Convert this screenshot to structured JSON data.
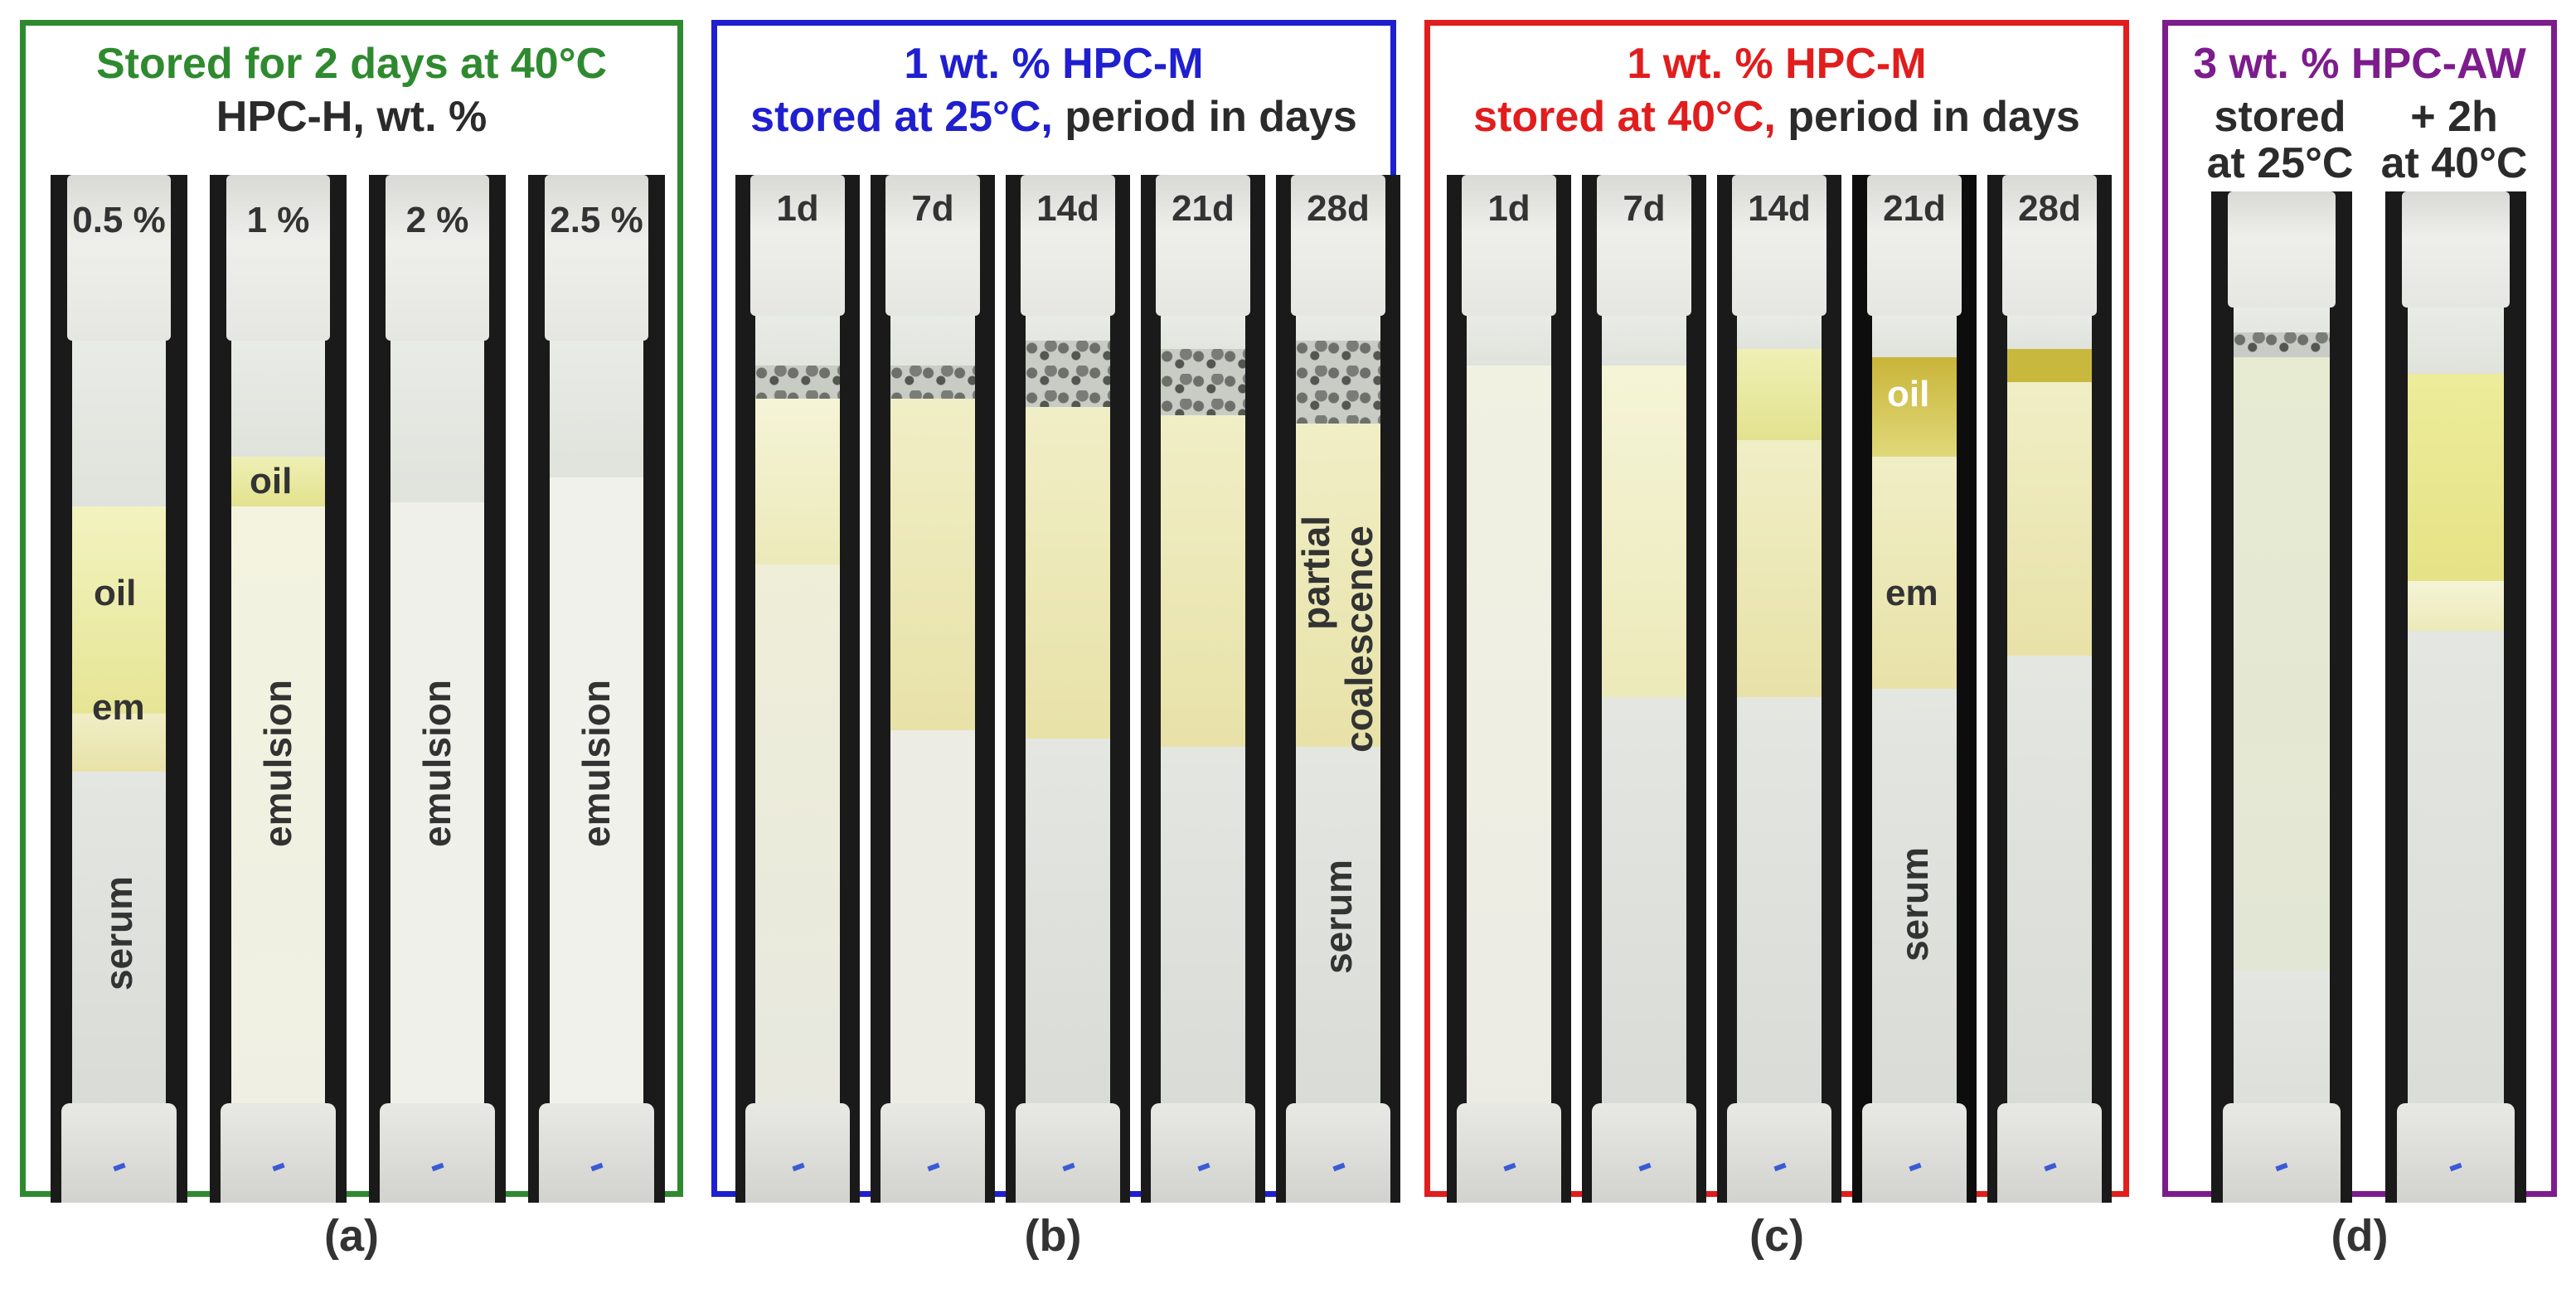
{
  "panels": {
    "a": {
      "title_line1": "Stored for 2 days at 40°C",
      "title_line2": "HPC-H, wt. %",
      "tubes": [
        "0.5 %",
        "1 %",
        "2 %",
        "2.5 %"
      ],
      "layer_labels": {
        "oil_0": "oil",
        "em_0": "em",
        "serum_0": "serum",
        "oil_1": "oil",
        "emulsion_1": "emulsion",
        "emulsion_2": "emulsion",
        "emulsion_3": "emulsion"
      },
      "caption": "(a)",
      "border_color": "#2f8a2f"
    },
    "b": {
      "title_line1": "1 wt. % HPC-M",
      "title_line2_colored": "stored at 25°C,",
      "title_line2_rest": " period in days",
      "tubes": [
        "1d",
        "7d",
        "14d",
        "21d",
        "28d"
      ],
      "layer_labels": {
        "partial": "partial",
        "coalescence": "coalescence",
        "serum": "serum"
      },
      "caption": "(b)",
      "border_color": "#1f1fcf"
    },
    "c": {
      "title_line1": "1 wt. % HPC-M",
      "title_line2_colored": "stored at 40°C,",
      "title_line2_rest": " period in days",
      "tubes": [
        "1d",
        "7d",
        "14d",
        "21d",
        "28d"
      ],
      "layer_labels": {
        "oil": "oil",
        "em": "em",
        "serum": "serum"
      },
      "caption": "(c)",
      "border_color": "#e11d1d"
    },
    "d": {
      "title_line1": "3 wt. % HPC-AW",
      "col1_line1": "stored",
      "col1_line2": "at 25°C",
      "col2_line1": "+ 2h",
      "col2_line2": "at 40°C",
      "caption": "(d)",
      "border_color": "#7d1c8c"
    }
  }
}
